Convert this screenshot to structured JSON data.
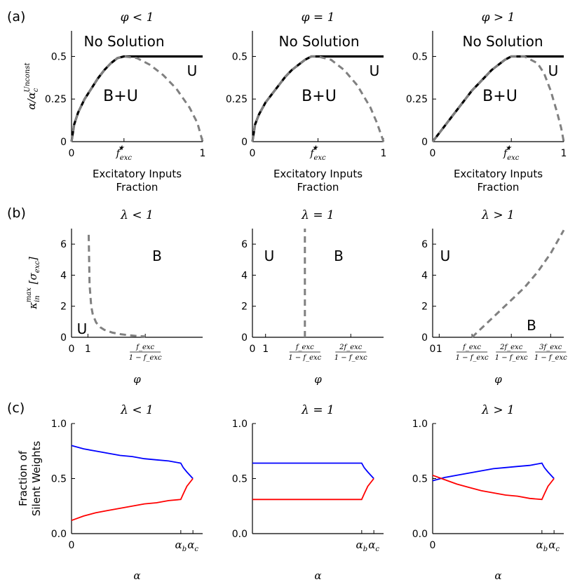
{
  "figure": {
    "row_labels": [
      "(a)",
      "(b)",
      "(c)"
    ]
  },
  "chart_data": [
    {
      "id": "a1",
      "type": "line",
      "title": "φ < 1",
      "xlabel": "Excitatory Inputs\nFraction",
      "ylabel": "α/α_c^Unconst",
      "xlim": [
        0,
        1
      ],
      "ylim": [
        0,
        0.65
      ],
      "xticks": [
        {
          "v": 0,
          "label": "0"
        },
        {
          "v": 0.4,
          "label": "f*exc"
        },
        {
          "v": 1,
          "label": "1"
        }
      ],
      "yticks": [
        {
          "v": 0,
          "label": "0"
        },
        {
          "v": 0.25,
          "label": "0.25"
        },
        {
          "v": 0.5,
          "label": "0.5"
        }
      ],
      "regions": [
        "No Solution",
        "B+U",
        "U"
      ],
      "series": [
        {
          "style": "solid-black",
          "x": [
            0,
            0.02,
            0.05,
            0.1,
            0.15,
            0.2,
            0.25,
            0.3,
            0.35,
            0.4,
            0.5,
            0.6,
            0.7,
            0.8,
            0.9,
            1.0
          ],
          "y": [
            0,
            0.1,
            0.17,
            0.25,
            0.31,
            0.37,
            0.42,
            0.46,
            0.49,
            0.5,
            0.5,
            0.5,
            0.5,
            0.5,
            0.5,
            0.5
          ]
        },
        {
          "style": "dashed-gray",
          "x": [
            0,
            0.02,
            0.05,
            0.1,
            0.15,
            0.2,
            0.25,
            0.3,
            0.35,
            0.4,
            0.5,
            0.6,
            0.7,
            0.8,
            0.9,
            0.96,
            1.0
          ],
          "y": [
            0,
            0.1,
            0.17,
            0.25,
            0.31,
            0.37,
            0.42,
            0.46,
            0.49,
            0.5,
            0.49,
            0.45,
            0.39,
            0.31,
            0.2,
            0.11,
            0
          ]
        }
      ]
    },
    {
      "id": "a2",
      "type": "line",
      "title": "φ = 1",
      "xlabel": "Excitatory Inputs\nFraction",
      "xlim": [
        0,
        1
      ],
      "ylim": [
        0,
        0.65
      ],
      "xticks": [
        {
          "v": 0,
          "label": "0"
        },
        {
          "v": 0.5,
          "label": "f*exc"
        },
        {
          "v": 1,
          "label": "1"
        }
      ],
      "yticks": [
        {
          "v": 0,
          "label": "0"
        },
        {
          "v": 0.25,
          "label": "0.25"
        },
        {
          "v": 0.5,
          "label": "0.5"
        }
      ],
      "regions": [
        "No Solution",
        "B+U",
        "U"
      ],
      "series": [
        {
          "style": "solid-black",
          "x": [
            0,
            0.02,
            0.05,
            0.1,
            0.15,
            0.2,
            0.25,
            0.3,
            0.35,
            0.4,
            0.45,
            0.5,
            0.6,
            0.7,
            0.8,
            0.9,
            1.0
          ],
          "y": [
            0,
            0.1,
            0.16,
            0.23,
            0.28,
            0.33,
            0.38,
            0.42,
            0.45,
            0.48,
            0.5,
            0.5,
            0.5,
            0.5,
            0.5,
            0.5,
            0.5
          ]
        },
        {
          "style": "dashed-gray",
          "x": [
            0,
            0.02,
            0.05,
            0.1,
            0.15,
            0.2,
            0.25,
            0.3,
            0.35,
            0.4,
            0.45,
            0.5,
            0.6,
            0.7,
            0.8,
            0.9,
            0.95,
            1.0
          ],
          "y": [
            0,
            0.1,
            0.16,
            0.23,
            0.28,
            0.33,
            0.38,
            0.42,
            0.45,
            0.48,
            0.5,
            0.5,
            0.48,
            0.42,
            0.33,
            0.2,
            0.11,
            0
          ]
        }
      ]
    },
    {
      "id": "a3",
      "type": "line",
      "title": "φ > 1",
      "xlabel": "Excitatory Inputs\nFraction",
      "xlim": [
        0,
        1
      ],
      "ylim": [
        0,
        0.65
      ],
      "xticks": [
        {
          "v": 0,
          "label": "0"
        },
        {
          "v": 0.6,
          "label": "f*exc"
        },
        {
          "v": 1,
          "label": "1"
        }
      ],
      "yticks": [
        {
          "v": 0,
          "label": "0"
        },
        {
          "v": 0.25,
          "label": "0.25"
        },
        {
          "v": 0.5,
          "label": "0.5"
        }
      ],
      "regions": [
        "No Solution",
        "B+U",
        "U"
      ],
      "series": [
        {
          "style": "solid-black",
          "x": [
            0,
            0.05,
            0.1,
            0.15,
            0.2,
            0.25,
            0.3,
            0.35,
            0.4,
            0.45,
            0.5,
            0.55,
            0.6,
            0.7,
            0.8,
            0.9,
            1.0
          ],
          "y": [
            0,
            0.05,
            0.1,
            0.15,
            0.2,
            0.25,
            0.3,
            0.34,
            0.38,
            0.42,
            0.45,
            0.48,
            0.5,
            0.5,
            0.5,
            0.5,
            0.5
          ]
        },
        {
          "style": "dashed-gray",
          "x": [
            0,
            0.05,
            0.1,
            0.15,
            0.2,
            0.25,
            0.3,
            0.35,
            0.4,
            0.45,
            0.5,
            0.55,
            0.6,
            0.7,
            0.8,
            0.85,
            0.9,
            0.95,
            0.98,
            1.0
          ],
          "y": [
            0,
            0.05,
            0.1,
            0.15,
            0.2,
            0.25,
            0.3,
            0.34,
            0.38,
            0.42,
            0.45,
            0.48,
            0.5,
            0.5,
            0.46,
            0.4,
            0.3,
            0.17,
            0.08,
            0
          ]
        }
      ]
    },
    {
      "id": "b1",
      "type": "line",
      "title": "λ < 1",
      "xlabel": "φ",
      "ylabel": "κ_in^max [σ_exc]",
      "xlim": [
        0,
        8
      ],
      "ylim": [
        0,
        7
      ],
      "xticks": [
        {
          "v": 0,
          "label": "0"
        },
        {
          "v": 1,
          "label": "1"
        },
        {
          "v": 4.5,
          "label": "frac1"
        }
      ],
      "yticks": [
        {
          "v": 0,
          "label": "0"
        },
        {
          "v": 2,
          "label": "2"
        },
        {
          "v": 4,
          "label": "4"
        },
        {
          "v": 6,
          "label": "6"
        }
      ],
      "tick_fraction": {
        "num": "f_exc",
        "den": "1 − f_exc"
      },
      "regions": [
        "B",
        "U"
      ],
      "series": [
        {
          "style": "dashed-gray",
          "x": [
            1.05,
            1.1,
            1.2,
            1.3,
            1.5,
            1.75,
            2.0,
            2.5,
            3.0,
            3.5,
            4.0,
            4.5
          ],
          "y": [
            6.6,
            3.4,
            2.0,
            1.45,
            0.95,
            0.65,
            0.48,
            0.3,
            0.2,
            0.13,
            0.08,
            0.05
          ]
        }
      ]
    },
    {
      "id": "b2",
      "type": "line",
      "title": "λ = 1",
      "xlabel": "φ",
      "xlim": [
        0,
        10
      ],
      "ylim": [
        0,
        7
      ],
      "xticks": [
        {
          "v": 0,
          "label": "0"
        },
        {
          "v": 1,
          "label": "1"
        },
        {
          "v": 4,
          "label": "frac1"
        },
        {
          "v": 7.5,
          "label": "frac2"
        }
      ],
      "yticks": [
        {
          "v": 0,
          "label": "0"
        },
        {
          "v": 2,
          "label": "2"
        },
        {
          "v": 4,
          "label": "4"
        },
        {
          "v": 6,
          "label": "6"
        }
      ],
      "tick_fraction": {
        "num": "f_exc",
        "num2": "2f_exc",
        "den": "1 − f_exc"
      },
      "regions": [
        "U",
        "B"
      ],
      "series": [
        {
          "style": "dashed-gray",
          "x": [
            4,
            4
          ],
          "y": [
            0,
            7
          ]
        }
      ]
    },
    {
      "id": "b3",
      "type": "line",
      "title": "λ > 1",
      "xlabel": "φ",
      "xlim": [
        0,
        10
      ],
      "ylim": [
        0,
        7
      ],
      "xticks": [
        {
          "v": 0,
          "label": "0"
        },
        {
          "v": 0.5,
          "label": "1"
        },
        {
          "v": 3,
          "label": "frac1"
        },
        {
          "v": 6,
          "label": "frac2"
        },
        {
          "v": 9,
          "label": "frac3"
        }
      ],
      "yticks": [
        {
          "v": 0,
          "label": "0"
        },
        {
          "v": 2,
          "label": "2"
        },
        {
          "v": 4,
          "label": "4"
        },
        {
          "v": 6,
          "label": "6"
        }
      ],
      "tick_fraction": {
        "num": "f_exc",
        "num2": "2f_exc",
        "num3": "3f_exc",
        "den": "1 − f_exc"
      },
      "regions": [
        "U",
        "B"
      ],
      "series": [
        {
          "style": "dashed-gray",
          "x": [
            3,
            4,
            5,
            6,
            7,
            8,
            9,
            10
          ],
          "y": [
            0,
            0.8,
            1.6,
            2.4,
            3.2,
            4.2,
            5.4,
            6.9
          ]
        }
      ]
    },
    {
      "id": "c1",
      "type": "line",
      "title": "λ < 1",
      "xlabel": "α",
      "ylabel": "Fraction of\nSilent Weights",
      "xlim": [
        0,
        1.08
      ],
      "ylim": [
        0,
        1
      ],
      "xticks": [
        {
          "v": 0,
          "label": "0"
        },
        {
          "v": 0.9,
          "label": "α_b"
        },
        {
          "v": 1.0,
          "label": "α_c"
        }
      ],
      "yticks": [
        {
          "v": 0,
          "label": "0.0"
        },
        {
          "v": 0.5,
          "label": "0.5"
        },
        {
          "v": 1,
          "label": "1.0"
        }
      ],
      "series": [
        {
          "color": "blue",
          "x": [
            0,
            0.1,
            0.2,
            0.3,
            0.4,
            0.5,
            0.6,
            0.7,
            0.8,
            0.9,
            0.92,
            0.95,
            1.0
          ],
          "y": [
            0.8,
            0.77,
            0.75,
            0.73,
            0.71,
            0.7,
            0.68,
            0.67,
            0.66,
            0.64,
            0.6,
            0.56,
            0.5
          ]
        },
        {
          "color": "red",
          "x": [
            0,
            0.1,
            0.2,
            0.3,
            0.4,
            0.5,
            0.6,
            0.7,
            0.8,
            0.9,
            0.92,
            0.95,
            1.0
          ],
          "y": [
            0.12,
            0.16,
            0.19,
            0.21,
            0.23,
            0.25,
            0.27,
            0.28,
            0.3,
            0.31,
            0.36,
            0.43,
            0.5
          ]
        }
      ]
    },
    {
      "id": "c2",
      "type": "line",
      "title": "λ = 1",
      "xlabel": "α",
      "xlim": [
        0,
        1.08
      ],
      "ylim": [
        0,
        1
      ],
      "xticks": [
        {
          "v": 0.9,
          "label": "α_b"
        },
        {
          "v": 1.0,
          "label": "α_c"
        }
      ],
      "yticks": [
        {
          "v": 0,
          "label": "0.0"
        },
        {
          "v": 0.5,
          "label": "0.5"
        },
        {
          "v": 1,
          "label": "1.0"
        }
      ],
      "series": [
        {
          "color": "blue",
          "x": [
            0,
            0.9,
            0.92,
            0.95,
            1.0
          ],
          "y": [
            0.64,
            0.64,
            0.6,
            0.56,
            0.5
          ]
        },
        {
          "color": "red",
          "x": [
            0,
            0.9,
            0.92,
            0.95,
            1.0
          ],
          "y": [
            0.31,
            0.31,
            0.36,
            0.43,
            0.5
          ]
        }
      ]
    },
    {
      "id": "c3",
      "type": "line",
      "title": "λ > 1",
      "xlabel": "α",
      "xlim": [
        0,
        1.08
      ],
      "ylim": [
        0,
        1
      ],
      "xticks": [
        {
          "v": 0,
          "label": "0"
        },
        {
          "v": 0.9,
          "label": "α_b"
        },
        {
          "v": 1.0,
          "label": "α_c"
        }
      ],
      "yticks": [
        {
          "v": 0,
          "label": "0.0"
        },
        {
          "v": 0.5,
          "label": "0.5"
        },
        {
          "v": 1,
          "label": "1.0"
        }
      ],
      "series": [
        {
          "color": "blue",
          "x": [
            0,
            0.1,
            0.2,
            0.3,
            0.4,
            0.5,
            0.6,
            0.7,
            0.8,
            0.9,
            0.92,
            0.95,
            1.0
          ],
          "y": [
            0.48,
            0.51,
            0.53,
            0.55,
            0.57,
            0.59,
            0.6,
            0.61,
            0.62,
            0.64,
            0.6,
            0.56,
            0.5
          ]
        },
        {
          "color": "red",
          "x": [
            0,
            0.1,
            0.2,
            0.3,
            0.4,
            0.5,
            0.6,
            0.7,
            0.8,
            0.9,
            0.92,
            0.95,
            1.0
          ],
          "y": [
            0.53,
            0.49,
            0.45,
            0.42,
            0.39,
            0.37,
            0.35,
            0.34,
            0.32,
            0.31,
            0.36,
            0.43,
            0.5
          ]
        }
      ]
    }
  ]
}
